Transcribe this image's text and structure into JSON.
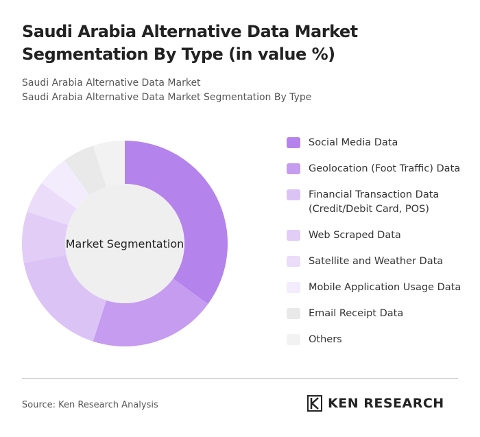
{
  "header": {
    "title": "Saudi Arabia Alternative Data Market Segmentation By Type (in value %)",
    "subtitle_1": "Saudi Arabia Alternative Data Market",
    "subtitle_2": "Saudi Arabia Alternative Data Market Segmentation By Type"
  },
  "chart_data": {
    "type": "donut",
    "center_label": "Market Segmentation",
    "categories": [
      "Social Media Data",
      "Geolocation (Foot Traffic) Data",
      "Financial Transaction Data (Credit/Debit Card, POS)",
      "Web Scraped Data",
      "Satellite and Weather Data",
      "Mobile Application Usage Data",
      "Email Receipt Data",
      "Others"
    ],
    "values": [
      35,
      20,
      17,
      8,
      5,
      5,
      5,
      5
    ],
    "colors": [
      "#b583ec",
      "#c59cf0",
      "#dcc3f6",
      "#e2cdf7",
      "#ebdcfa",
      "#f3ecfd",
      "#e9e9e9",
      "#f2f2f2"
    ]
  },
  "footer": {
    "source": "Source: Ken Research Analysis",
    "logo": "KEN RESEARCH"
  }
}
